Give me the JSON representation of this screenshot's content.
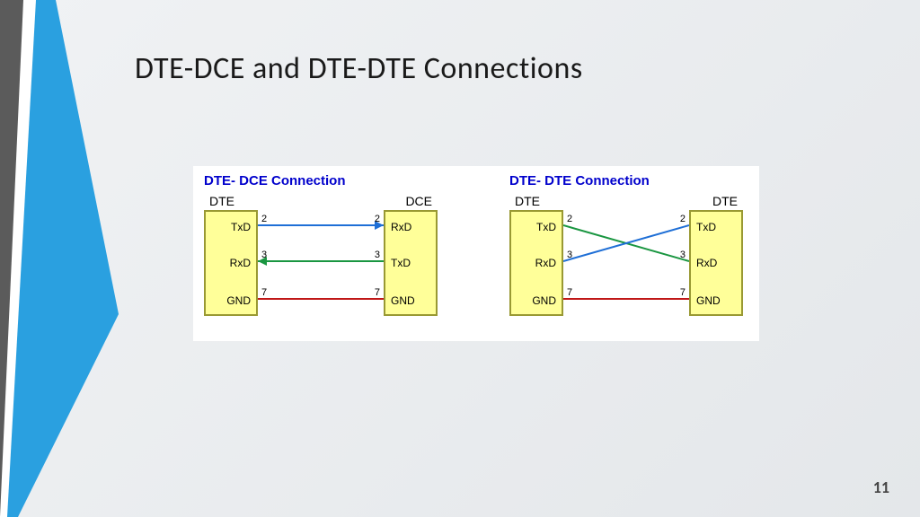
{
  "slide": {
    "title": "DTE-DCE and DTE-DTE Connections",
    "page_number": "11",
    "background_gradient": [
      "#f0f2f4",
      "#e4e7ea"
    ],
    "accent_colors": {
      "dark_gray": "#5b5b5b",
      "white": "#ffffff",
      "blue": "#2aa0e0"
    }
  },
  "diagram_area": {
    "background_color": "#ffffff",
    "box_fill": "#ffff99",
    "box_border": "#999933",
    "title_color": "#0000cc",
    "label_color": "#000000",
    "font_family": "Arial",
    "title_fontsize": 15,
    "label_fontsize": 14,
    "pin_fontsize": 12,
    "num_fontsize": 11
  },
  "diagrams": [
    {
      "title": "DTE- DCE Connection",
      "left_label": "DTE",
      "right_label": "DCE",
      "left_pins": [
        "TxD",
        "RxD",
        "GND"
      ],
      "right_pins": [
        "RxD",
        "TxD",
        "GND"
      ],
      "pin_numbers_left": [
        "2",
        "3",
        "7"
      ],
      "pin_numbers_right": [
        "2",
        "3",
        "7"
      ],
      "connections": [
        {
          "from_row": 0,
          "to_row": 0,
          "color": "#1f6fd6",
          "arrow": "right"
        },
        {
          "from_row": 1,
          "to_row": 1,
          "color": "#1a9641",
          "arrow": "left"
        },
        {
          "from_row": 2,
          "to_row": 2,
          "color": "#c01717",
          "arrow": "none"
        }
      ]
    },
    {
      "title": "DTE- DTE Connection",
      "left_label": "DTE",
      "right_label": "DTE",
      "left_pins": [
        "TxD",
        "RxD",
        "GND"
      ],
      "right_pins": [
        "TxD",
        "RxD",
        "GND"
      ],
      "pin_numbers_left": [
        "2",
        "3",
        "7"
      ],
      "pin_numbers_right": [
        "2",
        "3",
        "7"
      ],
      "connections": [
        {
          "from_row": 0,
          "to_row": 1,
          "color": "#1a9641",
          "arrow": "none"
        },
        {
          "from_row": 1,
          "to_row": 0,
          "color": "#1f6fd6",
          "arrow": "none"
        },
        {
          "from_row": 2,
          "to_row": 2,
          "color": "#c01717",
          "arrow": "none"
        }
      ]
    }
  ]
}
